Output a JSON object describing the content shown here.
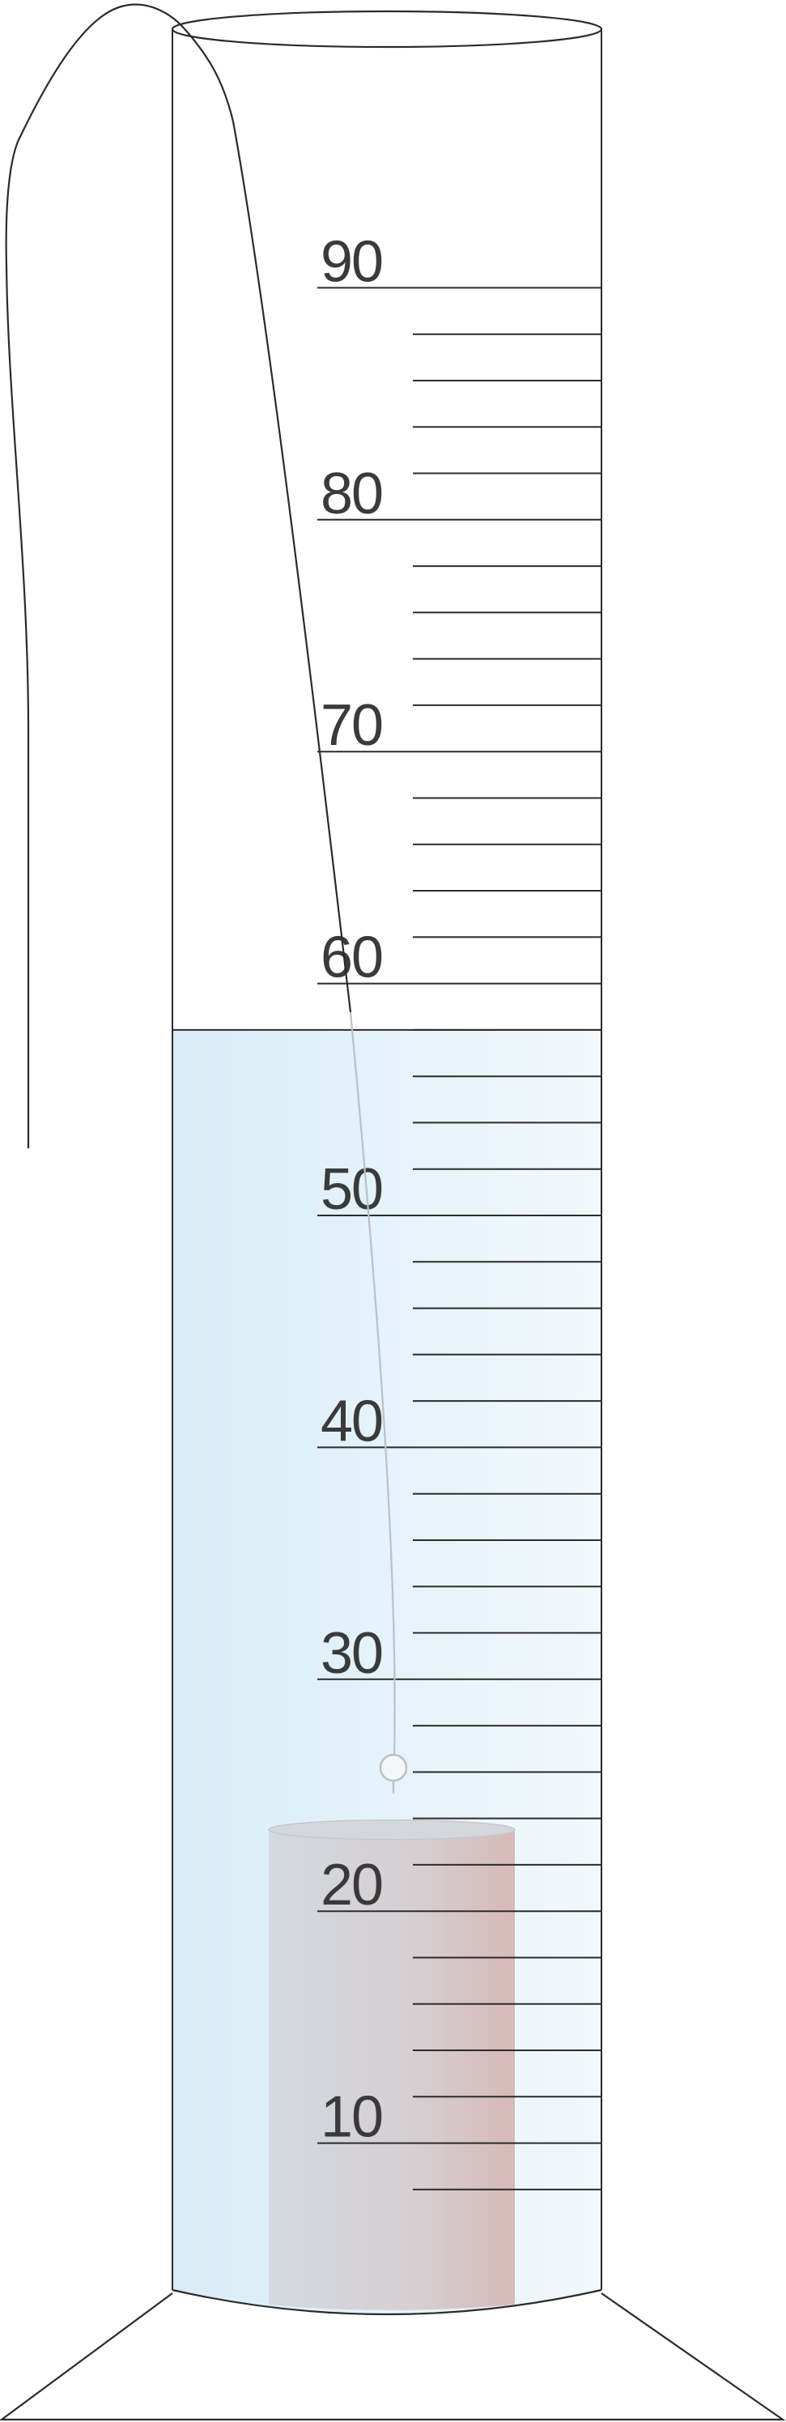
{
  "diagram": {
    "type": "graduated-cylinder-displacement",
    "scale": {
      "min": 0,
      "max": 90,
      "minor_step": 2,
      "labeled_values": [
        10,
        20,
        30,
        40,
        50,
        60,
        70,
        80,
        90
      ],
      "labels": [
        "10",
        "20",
        "30",
        "40",
        "50",
        "60",
        "70",
        "80",
        "90"
      ]
    },
    "water_level": 58,
    "object_top_level": 24,
    "colors": {
      "glass_outline": "#2b2b2b",
      "water_light": "#e4f2fa",
      "water_mid": "#d3eaf6",
      "object_left": "#cfd5db",
      "object_right": "#d8bcbc",
      "string": "#b5bcc4",
      "tick": "#2b2b2b",
      "label": "#3a3a3a"
    }
  }
}
